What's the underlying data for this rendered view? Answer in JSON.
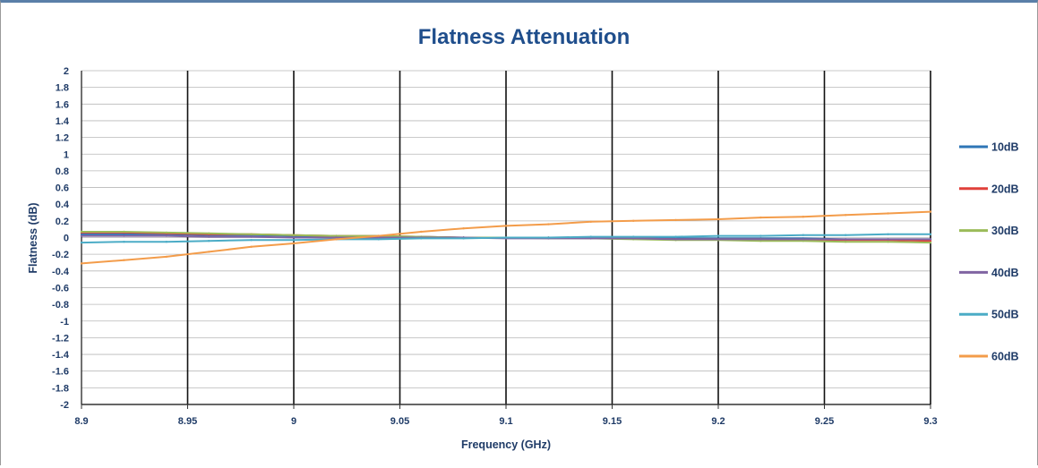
{
  "chart_data": {
    "type": "line",
    "title": "Flatness Attenuation",
    "xlabel": "Frequency (GHz)",
    "ylabel": "Flatness (dB)",
    "xlim": [
      8.9,
      9.3
    ],
    "ylim": [
      -2,
      2
    ],
    "x_ticks": [
      "8.9",
      "8.95",
      "9",
      "9.05",
      "9.1",
      "9.15",
      "9.2",
      "9.25",
      "9.3"
    ],
    "y_ticks": [
      "2",
      "1.8",
      "1.6",
      "1.4",
      "1.2",
      "1",
      "0.8",
      "0.6",
      "0.4",
      "0.2",
      "0",
      "-0.2",
      "-0.4",
      "-0.6",
      "-0.8",
      "-1",
      "-1.2",
      "-1.4",
      "-1.6",
      "-1.8",
      "-2"
    ],
    "grid": true,
    "legend_position": "right",
    "x": [
      8.9,
      8.92,
      8.94,
      8.96,
      8.98,
      9.0,
      9.02,
      9.04,
      9.06,
      9.08,
      9.1,
      9.12,
      9.14,
      9.16,
      9.18,
      9.2,
      9.22,
      9.24,
      9.26,
      9.28,
      9.3
    ],
    "series": [
      {
        "name": "10dB",
        "color": "#2e75b6",
        "values": [
          0.04,
          0.04,
          0.04,
          0.03,
          0.03,
          0.02,
          0.02,
          0.01,
          0.01,
          0.0,
          0.0,
          0.0,
          0.0,
          -0.01,
          -0.01,
          -0.01,
          -0.01,
          -0.01,
          -0.02,
          -0.02,
          -0.02
        ]
      },
      {
        "name": "20dB",
        "color": "#e0403a",
        "values": [
          0.06,
          0.06,
          0.05,
          0.04,
          0.04,
          0.03,
          0.02,
          0.02,
          0.01,
          0.0,
          0.0,
          0.0,
          -0.01,
          -0.01,
          -0.02,
          -0.02,
          -0.02,
          -0.03,
          -0.03,
          -0.03,
          -0.04
        ]
      },
      {
        "name": "30dB",
        "color": "#9bbb59",
        "values": [
          0.07,
          0.07,
          0.06,
          0.05,
          0.04,
          0.03,
          0.02,
          0.02,
          0.01,
          0.0,
          0.0,
          -0.01,
          -0.01,
          -0.02,
          -0.03,
          -0.03,
          -0.04,
          -0.04,
          -0.05,
          -0.05,
          -0.06
        ]
      },
      {
        "name": "40dB",
        "color": "#8064a2",
        "values": [
          0.02,
          0.02,
          0.02,
          0.01,
          0.01,
          0.0,
          0.0,
          0.0,
          0.0,
          0.0,
          -0.01,
          -0.01,
          -0.01,
          -0.01,
          -0.02,
          -0.02,
          -0.02,
          -0.02,
          -0.02,
          -0.02,
          -0.02
        ]
      },
      {
        "name": "50dB",
        "color": "#4bacc6",
        "values": [
          -0.06,
          -0.05,
          -0.05,
          -0.04,
          -0.03,
          -0.03,
          -0.02,
          -0.02,
          -0.01,
          -0.01,
          0.0,
          0.0,
          0.01,
          0.01,
          0.01,
          0.02,
          0.02,
          0.03,
          0.03,
          0.04,
          0.04
        ]
      },
      {
        "name": "60dB",
        "color": "#f39c4a",
        "values": [
          -0.31,
          -0.27,
          -0.23,
          -0.17,
          -0.11,
          -0.07,
          -0.02,
          0.02,
          0.07,
          0.11,
          0.14,
          0.16,
          0.19,
          0.2,
          0.21,
          0.22,
          0.24,
          0.25,
          0.27,
          0.29,
          0.31
        ]
      }
    ]
  }
}
